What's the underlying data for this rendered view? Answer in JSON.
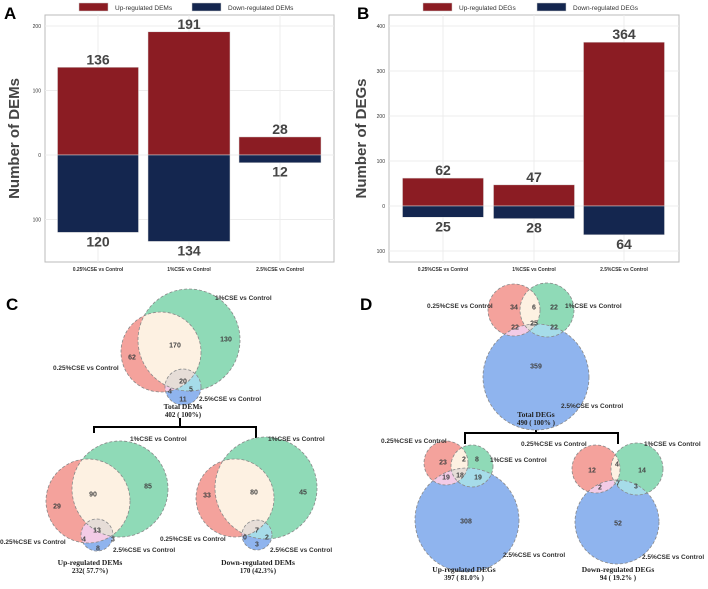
{
  "panel_labels": [
    "A",
    "B",
    "C",
    "D"
  ],
  "colors": {
    "up": "#8b1c23",
    "down": "#14264f",
    "pink": "#f4a29c",
    "green": "#8fdab7",
    "blue": "#8fb4ee",
    "cream": "#fdf1e2",
    "pinkblue": "#f3cbe6",
    "greenblue": "#a6dce9",
    "triple": "#e6ddd7"
  },
  "chart_data": [
    {
      "type": "bar",
      "title": "",
      "legend": [
        "Up-regulated DEMs",
        "Down-regulated DEMs"
      ],
      "legend_position": "top",
      "ylabel": "Number of DEMs",
      "xlabel": "",
      "categories": [
        "0.25%CSE vs Control",
        "1%CSE vs Control",
        "2.5%CSE vs Control"
      ],
      "series": [
        {
          "name": "Up-regulated DEMs",
          "values": [
            136,
            191,
            28
          ]
        },
        {
          "name": "Down-regulated DEMs",
          "values": [
            120,
            134,
            12
          ]
        }
      ],
      "yticks": [
        {
          "value": 200,
          "label": "200"
        },
        {
          "value": 100,
          "label": "100"
        },
        {
          "value": 0,
          "label": "0"
        },
        {
          "value": -100,
          "label": "100"
        }
      ],
      "ylim": [
        -160,
        225
      ],
      "grid": true
    },
    {
      "type": "bar",
      "title": "",
      "legend": [
        "Up-regulated DEGs",
        "Down-regulated DEGs"
      ],
      "legend_position": "top",
      "ylabel": "Number of DEGs",
      "xlabel": "",
      "categories": [
        "0.25%CSE vs Control",
        "1%CSE vs Control",
        "2.5%CSE vs Control"
      ],
      "series": [
        {
          "name": "Up-regulated DEGs",
          "values": [
            62,
            47,
            364
          ]
        },
        {
          "name": "Down-regulated DEGs",
          "values": [
            25,
            28,
            64
          ]
        }
      ],
      "yticks": [
        {
          "value": 400,
          "label": "400"
        },
        {
          "value": 300,
          "label": "300"
        },
        {
          "value": 200,
          "label": "200"
        },
        {
          "value": 100,
          "label": "100"
        },
        {
          "value": 0,
          "label": "0"
        },
        {
          "value": -100,
          "label": "100"
        }
      ],
      "ylim": [
        -125,
        425
      ],
      "grid": true
    }
  ],
  "venns": [
    {
      "id": "c-total",
      "caption": "Total DEMs",
      "caption_sub": "402 ( 100%)",
      "set_labels": [
        "0.25%CSE vs Control",
        "1%CSE vs Control",
        "2.5%CSE vs Control"
      ],
      "counts": {
        "a_only": "62",
        "b_only": "130",
        "ab": "170",
        "abc": "20",
        "ac": "4",
        "bc": "5",
        "c_only": "11"
      }
    },
    {
      "id": "c-up",
      "caption": "Up-regulated DEMs",
      "caption_sub": "232( 57.7%)",
      "set_labels": [
        "0.25%CSE vs Control",
        "1%CSE vs Control",
        "2.5%CSE vs Control"
      ],
      "counts": {
        "a_only": "29",
        "b_only": "85",
        "ab": "90",
        "abc": "13",
        "ac": "4",
        "bc": "3",
        "c_only": "8"
      }
    },
    {
      "id": "c-down",
      "caption": "Down-regulated DEMs",
      "caption_sub": "170 (42.3%)",
      "set_labels": [
        "0.25%CSE vs Control",
        "1%CSE vs Control",
        "2.5%CSE vs Control"
      ],
      "counts": {
        "a_only": "33",
        "b_only": "45",
        "ab": "80",
        "abc": "7",
        "ac": "0",
        "bc": "2",
        "c_only": "3"
      }
    },
    {
      "id": "d-total",
      "caption": "Total DEGs",
      "caption_sub": "490 ( 100% )",
      "set_labels": [
        "0.25%CSE vs Control",
        "1%CSE vs Control",
        "2.5%CSE vs Control"
      ],
      "counts": {
        "a_only": "34",
        "b_only": "22",
        "ab": "6",
        "abc": "25",
        "ac": "22",
        "bc": "22",
        "c_only": "359"
      }
    },
    {
      "id": "d-up",
      "caption": "Up-regulated DEGs",
      "caption_sub": "397 ( 81.0% )",
      "set_labels": [
        "0.25%CSE vs Control",
        "1%CSE vs Control",
        "2.5%CSE vs Control"
      ],
      "counts": {
        "a_only": "23",
        "b_only": "8",
        "ab": "2",
        "abc": "18",
        "ac": "19",
        "bc": "19",
        "c_only": "308"
      }
    },
    {
      "id": "d-down",
      "caption": "Down-regulated DEGs",
      "caption_sub": "94 ( 19.2% )",
      "set_labels": [
        "0.25%CSE vs Control",
        "1%CSE vs Control",
        "2.5%CSE vs Control"
      ],
      "counts": {
        "a_only": "12",
        "b_only": "14",
        "ab": "4",
        "abc": "7",
        "ac": "2",
        "bc": "3",
        "c_only": "52"
      }
    }
  ]
}
